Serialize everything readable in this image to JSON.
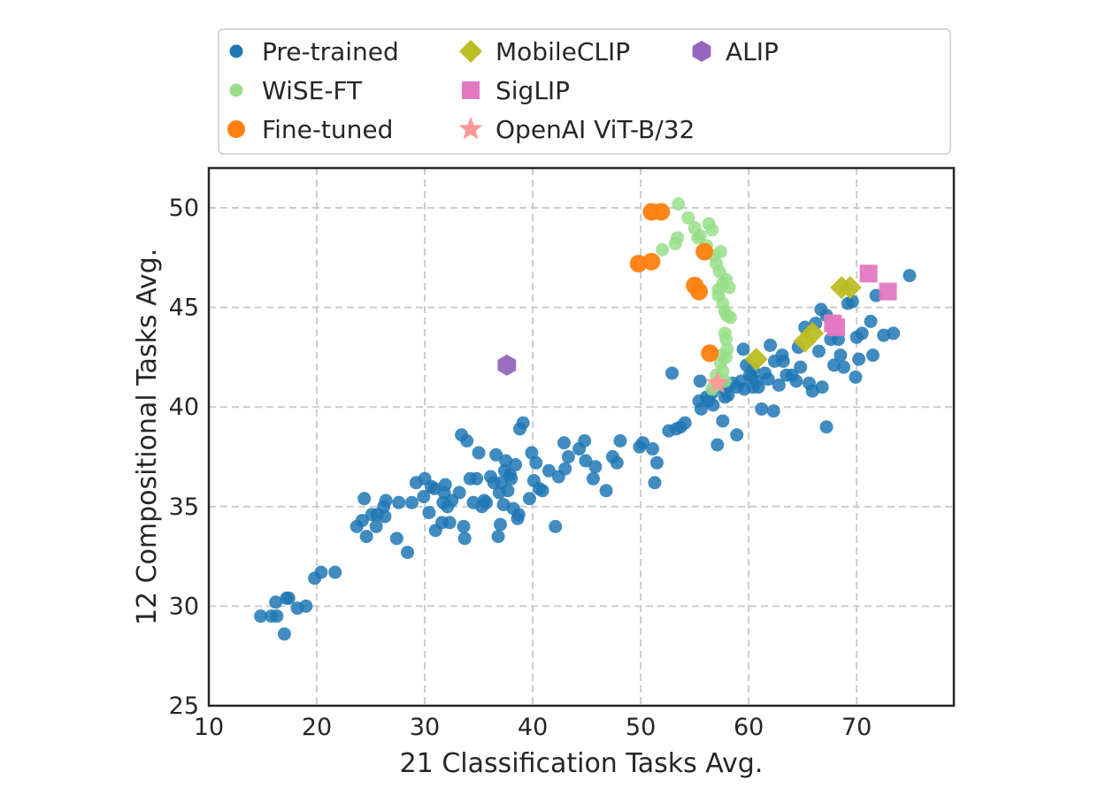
{
  "chart_data": {
    "type": "scatter",
    "xlabel": "21 Classification Tasks Avg.",
    "ylabel": "12 Compositional Tasks Avg.",
    "xlim": [
      10,
      79
    ],
    "ylim": [
      25,
      52
    ],
    "xticks": [
      "10",
      "20",
      "30",
      "40",
      "50",
      "60",
      "70"
    ],
    "yticks": [
      "25",
      "30",
      "35",
      "40",
      "45",
      "50"
    ],
    "grid": true,
    "legend_position": "top, outside plot, 3 columns",
    "series": [
      {
        "name": "Pre-trained",
        "marker": "circle-small",
        "color": "#1f77b4",
        "points": [
          [
            14.8,
            29.5
          ],
          [
            15.8,
            29.5
          ],
          [
            16.3,
            29.5
          ],
          [
            16.2,
            30.2
          ],
          [
            17.2,
            30.4
          ],
          [
            17.4,
            30.4
          ],
          [
            17.0,
            28.6
          ],
          [
            18.2,
            29.9
          ],
          [
            19.0,
            30.0
          ],
          [
            19.8,
            31.4
          ],
          [
            20.4,
            31.7
          ],
          [
            21.7,
            31.7
          ],
          [
            23.7,
            34.0
          ],
          [
            24.2,
            34.3
          ],
          [
            24.6,
            33.5
          ],
          [
            25.1,
            34.6
          ],
          [
            25.6,
            34.6
          ],
          [
            25.5,
            34.0
          ],
          [
            24.4,
            35.4
          ],
          [
            26.2,
            35.0
          ],
          [
            26.4,
            35.3
          ],
          [
            26.3,
            34.5
          ],
          [
            27.4,
            33.4
          ],
          [
            27.6,
            35.2
          ],
          [
            28.4,
            32.7
          ],
          [
            28.8,
            35.2
          ],
          [
            29.2,
            36.2
          ],
          [
            29.9,
            35.5
          ],
          [
            30.0,
            36.4
          ],
          [
            30.6,
            36.0
          ],
          [
            30.9,
            35.9
          ],
          [
            30.4,
            34.7
          ],
          [
            31.0,
            33.8
          ],
          [
            31.6,
            34.2
          ],
          [
            31.7,
            35.2
          ],
          [
            31.8,
            35.7
          ],
          [
            31.9,
            36.1
          ],
          [
            32.1,
            35.0
          ],
          [
            32.3,
            34.2
          ],
          [
            32.5,
            35.3
          ],
          [
            33.2,
            35.7
          ],
          [
            33.4,
            38.6
          ],
          [
            33.6,
            34.0
          ],
          [
            33.7,
            33.4
          ],
          [
            33.9,
            38.3
          ],
          [
            34.2,
            36.4
          ],
          [
            34.5,
            35.2
          ],
          [
            34.8,
            36.4
          ],
          [
            35.0,
            37.7
          ],
          [
            35.3,
            35.0
          ],
          [
            35.5,
            35.3
          ],
          [
            35.7,
            35.2
          ],
          [
            36.1,
            36.5
          ],
          [
            36.4,
            36.2
          ],
          [
            36.6,
            37.6
          ],
          [
            36.8,
            33.5
          ],
          [
            36.9,
            35.7
          ],
          [
            37.0,
            34.1
          ],
          [
            37.1,
            36.2
          ],
          [
            37.3,
            35.1
          ],
          [
            37.4,
            36.8
          ],
          [
            37.5,
            37.3
          ],
          [
            37.7,
            35.8
          ],
          [
            37.9,
            36.6
          ],
          [
            38.0,
            36.4
          ],
          [
            38.2,
            34.9
          ],
          [
            38.4,
            37.1
          ],
          [
            38.6,
            34.4
          ],
          [
            38.7,
            34.6
          ],
          [
            38.8,
            38.9
          ],
          [
            39.1,
            39.2
          ],
          [
            39.7,
            35.4
          ],
          [
            39.9,
            37.7
          ],
          [
            40.1,
            36.3
          ],
          [
            40.3,
            37.2
          ],
          [
            40.6,
            35.9
          ],
          [
            40.9,
            35.8
          ],
          [
            41.5,
            36.8
          ],
          [
            42.1,
            34.0
          ],
          [
            42.4,
            36.5
          ],
          [
            42.9,
            38.2
          ],
          [
            43.0,
            36.9
          ],
          [
            43.3,
            37.5
          ],
          [
            44.3,
            37.9
          ],
          [
            44.8,
            38.3
          ],
          [
            44.9,
            37.3
          ],
          [
            45.6,
            36.4
          ],
          [
            45.8,
            37.0
          ],
          [
            46.8,
            35.8
          ],
          [
            47.4,
            37.5
          ],
          [
            47.8,
            37.2
          ],
          [
            48.1,
            38.3
          ],
          [
            49.9,
            38.0
          ],
          [
            50.2,
            38.2
          ],
          [
            51.1,
            37.9
          ],
          [
            51.3,
            36.2
          ],
          [
            51.5,
            37.2
          ],
          [
            52.6,
            38.8
          ],
          [
            52.9,
            41.7
          ],
          [
            53.3,
            38.9
          ],
          [
            53.7,
            39.0
          ],
          [
            54.1,
            39.2
          ],
          [
            55.4,
            40.3
          ],
          [
            55.5,
            41.3
          ],
          [
            55.6,
            39.9
          ],
          [
            56.1,
            40.5
          ],
          [
            56.3,
            40.3
          ],
          [
            56.7,
            40.1
          ],
          [
            57.1,
            38.1
          ],
          [
            57.4,
            41.0
          ],
          [
            57.6,
            39.3
          ],
          [
            57.8,
            40.5
          ],
          [
            58.0,
            41.0
          ],
          [
            58.1,
            40.6
          ],
          [
            58.5,
            41.2
          ],
          [
            58.9,
            41.0
          ],
          [
            58.9,
            38.6
          ],
          [
            59.3,
            41.3
          ],
          [
            59.6,
            40.9
          ],
          [
            59.8,
            42.1
          ],
          [
            60.1,
            41.6
          ],
          [
            60.3,
            41.5
          ],
          [
            60.4,
            41.9
          ],
          [
            60.7,
            41.3
          ],
          [
            60.9,
            41.0
          ],
          [
            61.2,
            39.9
          ],
          [
            61.5,
            41.7
          ],
          [
            61.8,
            41.4
          ],
          [
            62.0,
            43.1
          ],
          [
            62.3,
            39.8
          ],
          [
            62.4,
            42.3
          ],
          [
            62.8,
            41.1
          ],
          [
            63.1,
            42.6
          ],
          [
            63.2,
            42.3
          ],
          [
            63.5,
            41.6
          ],
          [
            64.0,
            41.6
          ],
          [
            64.4,
            41.3
          ],
          [
            64.6,
            43.0
          ],
          [
            64.8,
            42.0
          ],
          [
            65.2,
            44.0
          ],
          [
            65.6,
            41.2
          ],
          [
            65.9,
            40.8
          ],
          [
            66.2,
            44.2
          ],
          [
            66.5,
            42.8
          ],
          [
            66.8,
            41.0
          ],
          [
            67.2,
            44.6
          ],
          [
            67.2,
            39.0
          ],
          [
            67.6,
            43.4
          ],
          [
            67.9,
            42.1
          ],
          [
            68.3,
            43.4
          ],
          [
            68.5,
            42.6
          ],
          [
            68.8,
            42.0
          ],
          [
            69.2,
            45.2
          ],
          [
            69.6,
            45.3
          ],
          [
            69.9,
            41.5
          ],
          [
            70.0,
            43.5
          ],
          [
            70.2,
            42.4
          ],
          [
            70.5,
            43.7
          ],
          [
            71.3,
            44.3
          ],
          [
            71.5,
            42.6
          ],
          [
            71.8,
            45.6
          ],
          [
            72.5,
            43.6
          ],
          [
            73.4,
            43.7
          ],
          [
            74.9,
            46.6
          ],
          [
            66.7,
            44.9
          ],
          [
            59.5,
            42.9
          ],
          [
            56.6,
            40.7
          ],
          [
            60.4,
            41.0
          ]
        ]
      },
      {
        "name": "WiSE-FT",
        "marker": "circle-small",
        "color": "#98df8a",
        "points": [
          [
            53.5,
            50.2
          ],
          [
            53.2,
            48.2
          ],
          [
            53.4,
            48.5
          ],
          [
            54.4,
            49.5
          ],
          [
            55.0,
            49.0
          ],
          [
            55.3,
            48.5
          ],
          [
            55.5,
            48.6
          ],
          [
            56.3,
            49.2
          ],
          [
            56.6,
            48.9
          ],
          [
            52.0,
            47.9
          ],
          [
            56.1,
            48.1
          ],
          [
            56.8,
            47.6
          ],
          [
            57.0,
            47.2
          ],
          [
            57.3,
            46.8
          ],
          [
            57.4,
            47.8
          ],
          [
            57.6,
            46.2
          ],
          [
            57.9,
            46.4
          ],
          [
            58.2,
            46.0
          ],
          [
            57.2,
            45.6
          ],
          [
            57.6,
            45.2
          ],
          [
            57.8,
            44.8
          ],
          [
            58.0,
            44.6
          ],
          [
            58.3,
            44.5
          ],
          [
            57.8,
            43.7
          ],
          [
            57.9,
            43.4
          ],
          [
            58.0,
            42.9
          ],
          [
            57.5,
            42.6
          ],
          [
            57.9,
            42.5
          ],
          [
            57.4,
            42.2
          ],
          [
            57.6,
            41.8
          ],
          [
            57.0,
            41.6
          ],
          [
            56.9,
            41.1
          ],
          [
            56.6,
            40.9
          ],
          [
            57.2,
            45.9
          ],
          [
            57.8,
            41.3
          ]
        ]
      },
      {
        "name": "Fine-tuned",
        "marker": "circle-large",
        "color": "#ff7f0e",
        "points": [
          [
            51.0,
            49.8
          ],
          [
            51.9,
            49.8
          ],
          [
            49.8,
            47.2
          ],
          [
            51.0,
            47.3
          ],
          [
            55.9,
            47.8
          ],
          [
            55.0,
            46.1
          ],
          [
            55.4,
            45.8
          ],
          [
            56.4,
            42.7
          ]
        ]
      },
      {
        "name": "MobileCLIP",
        "marker": "diamond",
        "color": "#bcbd22",
        "points": [
          [
            68.6,
            46.0
          ],
          [
            69.4,
            46.0
          ],
          [
            65.2,
            43.3
          ],
          [
            65.9,
            43.7
          ],
          [
            60.7,
            42.4
          ]
        ]
      },
      {
        "name": "SigLIP",
        "marker": "square",
        "color": "#e377c2",
        "points": [
          [
            71.1,
            46.7
          ],
          [
            72.9,
            45.8
          ],
          [
            67.8,
            44.2
          ],
          [
            68.1,
            44.0
          ]
        ]
      },
      {
        "name": "OpenAI ViT-B/32",
        "marker": "star",
        "color": "#ff9896",
        "points": [
          [
            57.1,
            41.2
          ]
        ]
      },
      {
        "name": "ALIP",
        "marker": "hexagon",
        "color": "#9467bd",
        "points": [
          [
            37.6,
            42.1
          ]
        ]
      }
    ]
  }
}
